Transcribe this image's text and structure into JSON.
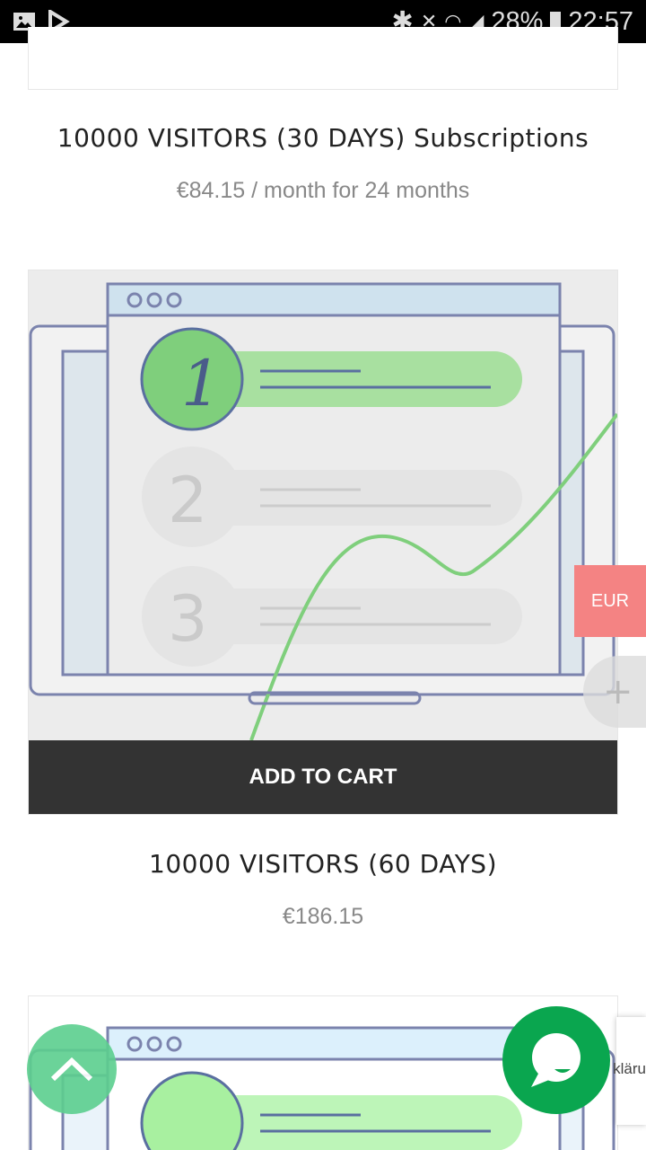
{
  "status_bar": {
    "battery": "28%",
    "time": "22:57",
    "icons": [
      "gallery-icon",
      "play-store-icon",
      "bluetooth-icon",
      "mute-icon",
      "wifi-icon",
      "signal-icon",
      "battery-icon"
    ]
  },
  "products": [
    {
      "title": "10000 VISITORS (30 DAYS) Subscriptions",
      "price": "€84.15 / month for 24 months"
    },
    {
      "title": "10000 VISITORS (60 DAYS)",
      "price": "€186.15",
      "button": "ADD TO CART"
    }
  ],
  "currency": "EUR",
  "side_panel_text": "kläru",
  "colors": {
    "accent_green": "#0aa64f",
    "currency_bg": "#f48383",
    "button_bg": "#333333"
  }
}
